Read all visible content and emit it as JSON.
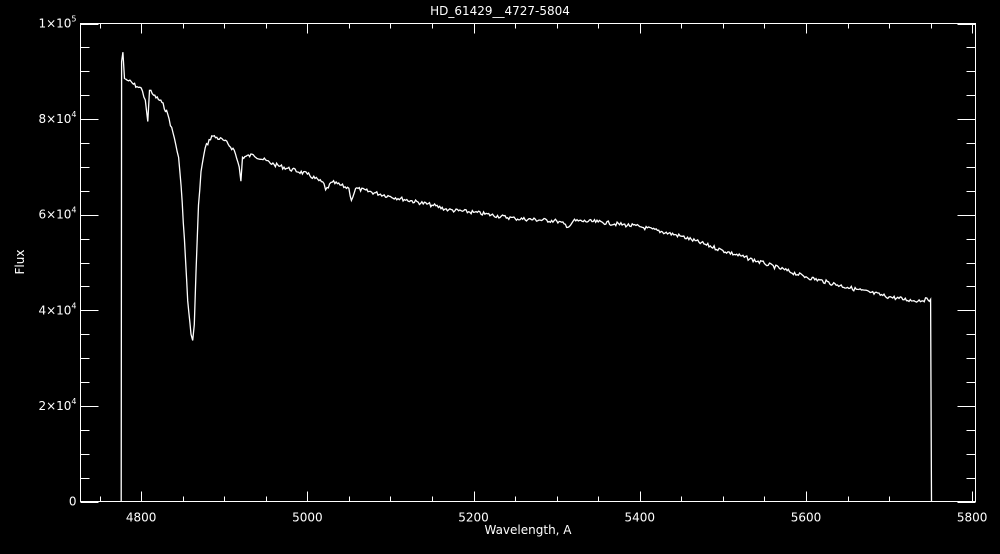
{
  "chart_data": {
    "type": "line",
    "title": "HD_61429__4727-5804",
    "xlabel": "Wavelength, A",
    "ylabel": "Flux",
    "xlim": [
      4727,
      5804
    ],
    "ylim": [
      0,
      100000
    ],
    "grid": false,
    "colors": {
      "background": "#000000",
      "foreground": "#ffffff",
      "line": "#ffffff"
    },
    "x_ticks": [
      {
        "value": 4800,
        "label": "4800"
      },
      {
        "value": 5000,
        "label": "5000"
      },
      {
        "value": 5200,
        "label": "5200"
      },
      {
        "value": 5400,
        "label": "5400"
      },
      {
        "value": 5600,
        "label": "5600"
      },
      {
        "value": 5800,
        "label": "5800"
      }
    ],
    "x_minor_step": 50,
    "y_ticks": [
      {
        "value": 0,
        "label": "0",
        "mant": "0",
        "exp": ""
      },
      {
        "value": 20000,
        "label": "2×10^4",
        "mant": "2×10",
        "exp": "4"
      },
      {
        "value": 40000,
        "label": "4×10^4",
        "mant": "4×10",
        "exp": "4"
      },
      {
        "value": 60000,
        "label": "6×10^4",
        "mant": "6×10",
        "exp": "4"
      },
      {
        "value": 80000,
        "label": "8×10^4",
        "mant": "8×10",
        "exp": "4"
      },
      {
        "value": 100000,
        "label": "1×10^5",
        "mant": "1×10",
        "exp": "5"
      }
    ],
    "y_minor_step": 5000,
    "series": [
      {
        "x": [
          4776,
          4776.5,
          4778,
          4780,
          4785,
          4795,
          4800,
          4805,
          4808,
          4810,
          4815,
          4825,
          4832,
          4840,
          4845,
          4848,
          4852,
          4856,
          4860,
          4862,
          4864,
          4866,
          4869,
          4872,
          4877,
          4885,
          4900,
          4912,
          4918,
          4920,
          4922,
          4935,
          4960,
          5000,
          5020,
          5022,
          5030,
          5050,
          5053,
          5058,
          5100,
          5150,
          5170,
          5200,
          5250,
          5300,
          5315,
          5320,
          5350,
          5400,
          5450,
          5500,
          5550,
          5600,
          5650,
          5700,
          5730,
          5750,
          5751
        ],
        "y": [
          0,
          92000,
          94000,
          88500,
          88000,
          86800,
          86500,
          84000,
          79500,
          86000,
          85000,
          83500,
          81000,
          76000,
          72000,
          66000,
          55000,
          42000,
          35000,
          33700,
          37000,
          48000,
          62000,
          69000,
          74000,
          76500,
          75500,
          73500,
          70000,
          67000,
          72000,
          72500,
          70500,
          68500,
          66500,
          65200,
          66800,
          65500,
          63000,
          65500,
          63800,
          62000,
          61000,
          60500,
          59200,
          58700,
          57500,
          58700,
          58500,
          57500,
          55500,
          52500,
          49800,
          47000,
          44800,
          42800,
          42000,
          42300,
          0
        ]
      }
    ]
  }
}
